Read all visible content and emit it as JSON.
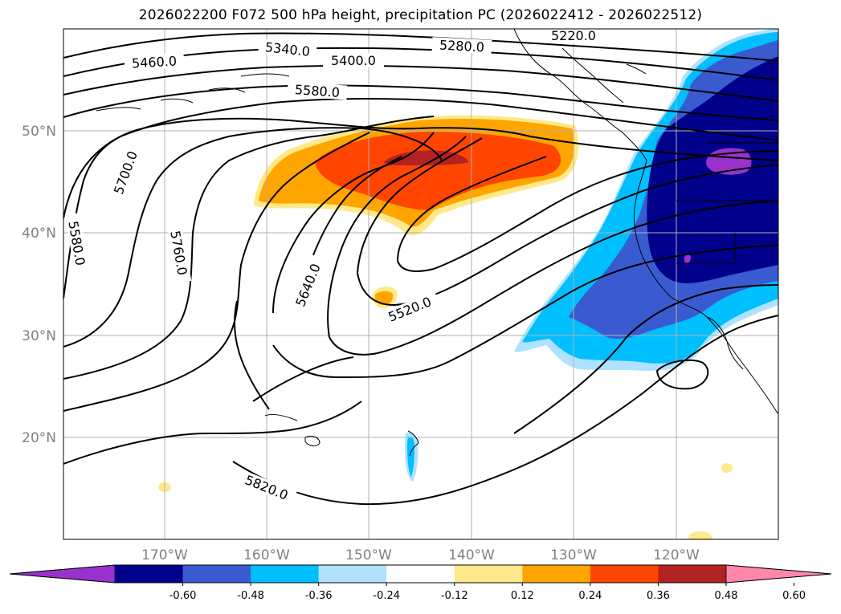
{
  "title": "2026022200 F072 500 hPa height, precipitation PC (2026022412 - 2026022512)",
  "lat_labels": [
    "50°N",
    "40°N",
    "30°N",
    "20°N"
  ],
  "lon_labels": [
    "170°W",
    "160°W",
    "150°W",
    "140°W",
    "130°W",
    "120°W"
  ],
  "contour_labels": [
    "5220.0",
    "5340.0",
    "5400.0",
    "5280.0",
    "5460.0",
    "5580.0",
    "5700.0",
    "5580.0",
    "5760.0",
    "5640.0",
    "5520.0",
    "5820.0"
  ],
  "colorbar": {
    "ticks": [
      "-0.60",
      "-0.48",
      "-0.36",
      "-0.24",
      "-0.12",
      "0.12",
      "0.24",
      "0.36",
      "0.48",
      "0.60"
    ],
    "colors": [
      "#9932cc",
      "#00008b",
      "#3a5bd0",
      "#00bfff",
      "#b0e2ff",
      "#ffffff",
      "#ffe98a",
      "#ffa500",
      "#ff4500",
      "#b22222",
      "#ff88aa"
    ]
  }
}
